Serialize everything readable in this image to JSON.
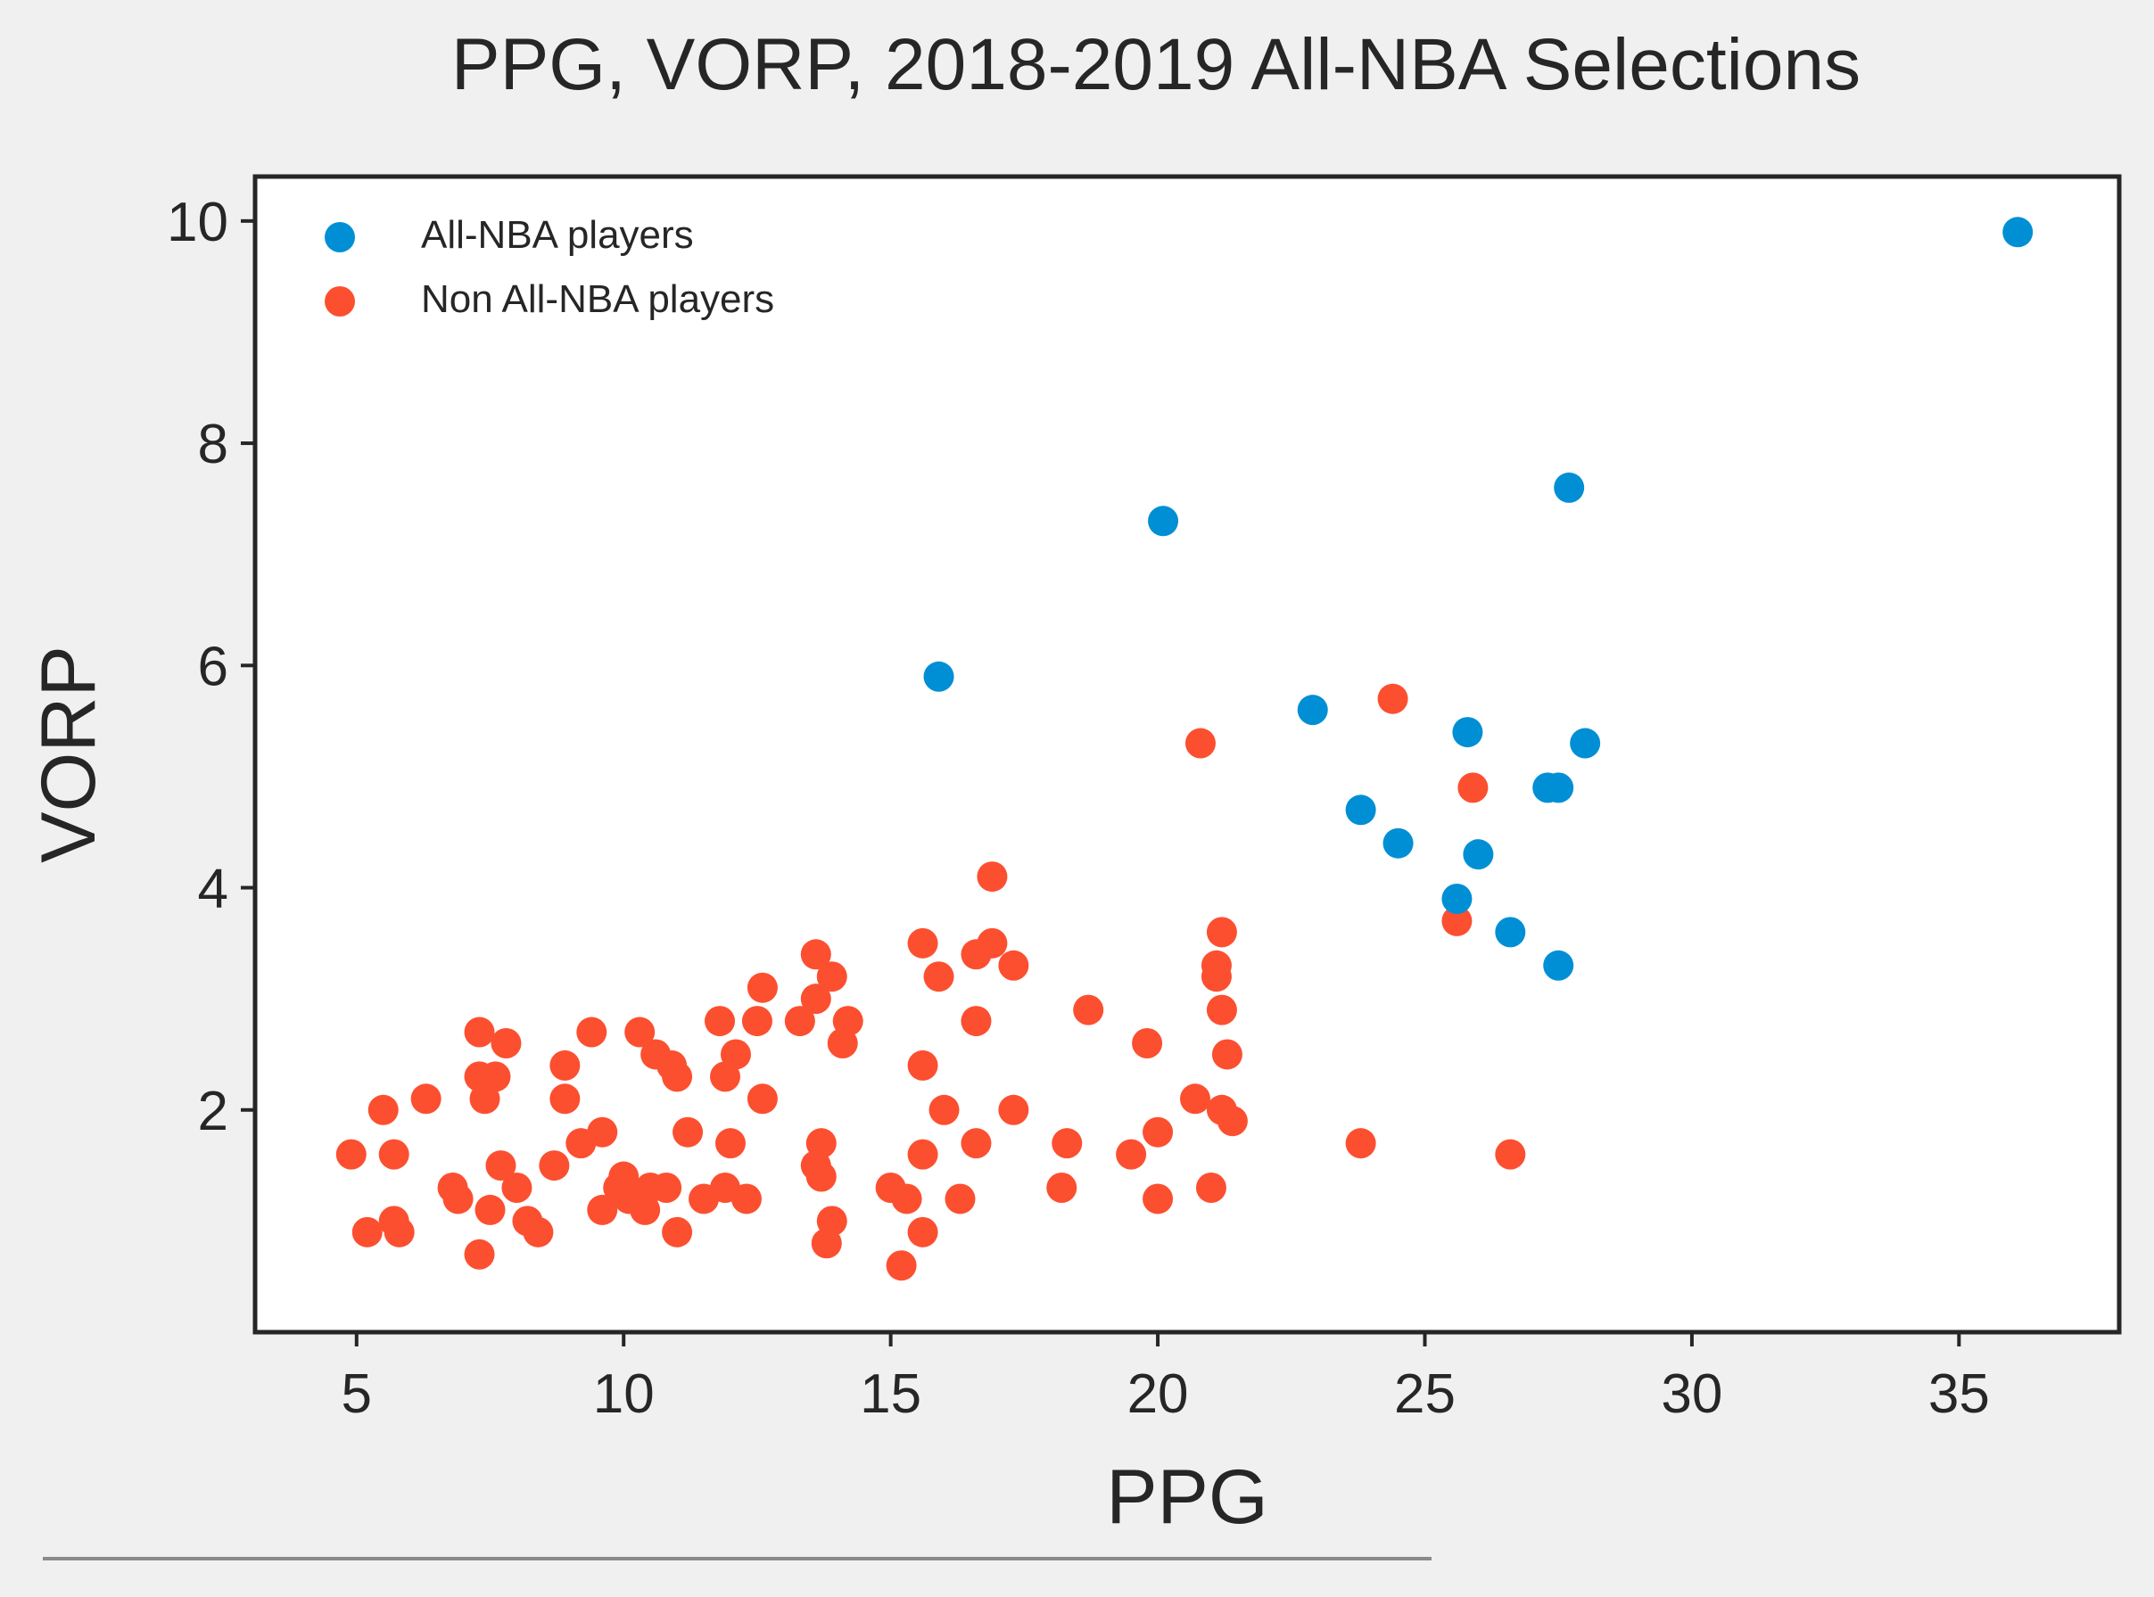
{
  "chart_data": {
    "type": "scatter",
    "title": "PPG, VORP, 2018-2019 All-NBA Selections",
    "xlabel": "PPG",
    "ylabel": "VORP",
    "xlim": [
      3.1,
      38.0
    ],
    "ylim": [
      0.0,
      10.4
    ],
    "xticks": [
      5,
      10,
      15,
      20,
      25,
      30,
      35
    ],
    "yticks": [
      2,
      4,
      6,
      8,
      10
    ],
    "grid": false,
    "legend_position": "top-left",
    "series": [
      {
        "name": "All-NBA players",
        "color": "#008fd5",
        "points": [
          [
            36.1,
            9.9
          ],
          [
            27.7,
            7.6
          ],
          [
            20.1,
            7.3
          ],
          [
            15.9,
            5.9
          ],
          [
            22.9,
            5.6
          ],
          [
            25.8,
            5.4
          ],
          [
            28.0,
            5.3
          ],
          [
            27.3,
            4.9
          ],
          [
            27.5,
            4.9
          ],
          [
            23.8,
            4.7
          ],
          [
            24.5,
            4.4
          ],
          [
            26.0,
            4.3
          ],
          [
            25.6,
            3.9
          ],
          [
            26.6,
            3.6
          ],
          [
            27.5,
            3.3
          ]
        ]
      },
      {
        "name": "Non All-NBA players",
        "color": "#fc4f30",
        "points": [
          [
            4.9,
            1.6
          ],
          [
            5.2,
            0.9
          ],
          [
            5.5,
            2.0
          ],
          [
            5.7,
            1.0
          ],
          [
            5.7,
            1.6
          ],
          [
            5.8,
            0.9
          ],
          [
            6.3,
            2.1
          ],
          [
            6.8,
            1.3
          ],
          [
            6.9,
            1.2
          ],
          [
            7.3,
            2.7
          ],
          [
            7.3,
            2.3
          ],
          [
            7.4,
            2.1
          ],
          [
            7.5,
            1.1
          ],
          [
            7.6,
            2.3
          ],
          [
            7.7,
            1.5
          ],
          [
            7.8,
            2.6
          ],
          [
            8.0,
            1.3
          ],
          [
            8.2,
            1.0
          ],
          [
            8.4,
            0.9
          ],
          [
            7.3,
            0.7
          ],
          [
            8.7,
            1.5
          ],
          [
            8.9,
            2.4
          ],
          [
            8.9,
            2.1
          ],
          [
            9.2,
            1.7
          ],
          [
            9.4,
            2.7
          ],
          [
            9.6,
            1.8
          ],
          [
            9.6,
            1.1
          ],
          [
            9.9,
            1.3
          ],
          [
            10.0,
            1.4
          ],
          [
            10.1,
            1.2
          ],
          [
            10.3,
            2.7
          ],
          [
            10.4,
            1.1
          ],
          [
            10.5,
            1.3
          ],
          [
            10.6,
            2.5
          ],
          [
            10.8,
            1.3
          ],
          [
            10.9,
            2.4
          ],
          [
            11.0,
            2.3
          ],
          [
            11.0,
            0.9
          ],
          [
            11.2,
            1.8
          ],
          [
            11.5,
            1.2
          ],
          [
            11.8,
            2.8
          ],
          [
            11.9,
            2.3
          ],
          [
            11.9,
            1.3
          ],
          [
            12.0,
            1.7
          ],
          [
            12.1,
            2.5
          ],
          [
            12.3,
            1.2
          ],
          [
            12.5,
            2.8
          ],
          [
            12.6,
            3.1
          ],
          [
            12.6,
            2.1
          ],
          [
            13.3,
            2.8
          ],
          [
            13.6,
            3.4
          ],
          [
            13.6,
            3.0
          ],
          [
            13.6,
            1.5
          ],
          [
            13.7,
            1.4
          ],
          [
            13.7,
            1.7
          ],
          [
            13.8,
            0.8
          ],
          [
            13.9,
            1.0
          ],
          [
            13.9,
            3.2
          ],
          [
            14.1,
            2.6
          ],
          [
            14.2,
            2.8
          ],
          [
            15.0,
            1.3
          ],
          [
            15.2,
            0.6
          ],
          [
            15.3,
            1.2
          ],
          [
            15.6,
            3.5
          ],
          [
            15.6,
            2.4
          ],
          [
            15.6,
            1.6
          ],
          [
            15.6,
            0.9
          ],
          [
            15.9,
            3.2
          ],
          [
            16.0,
            2.0
          ],
          [
            16.3,
            1.2
          ],
          [
            16.6,
            3.4
          ],
          [
            16.6,
            2.8
          ],
          [
            16.6,
            1.7
          ],
          [
            16.9,
            4.1
          ],
          [
            16.9,
            3.5
          ],
          [
            17.3,
            3.3
          ],
          [
            17.3,
            2.0
          ],
          [
            18.2,
            1.3
          ],
          [
            18.3,
            1.7
          ],
          [
            18.7,
            2.9
          ],
          [
            19.5,
            1.6
          ],
          [
            19.8,
            2.6
          ],
          [
            20.0,
            1.8
          ],
          [
            20.0,
            1.2
          ],
          [
            20.7,
            2.1
          ],
          [
            20.8,
            5.3
          ],
          [
            21.0,
            1.3
          ],
          [
            21.1,
            3.3
          ],
          [
            21.1,
            3.2
          ],
          [
            21.2,
            3.6
          ],
          [
            21.2,
            2.9
          ],
          [
            21.2,
            2.0
          ],
          [
            21.3,
            2.5
          ],
          [
            21.4,
            1.9
          ],
          [
            23.8,
            1.7
          ],
          [
            24.4,
            5.7
          ],
          [
            25.6,
            3.7
          ],
          [
            25.9,
            4.9
          ],
          [
            26.6,
            1.6
          ]
        ]
      }
    ]
  }
}
